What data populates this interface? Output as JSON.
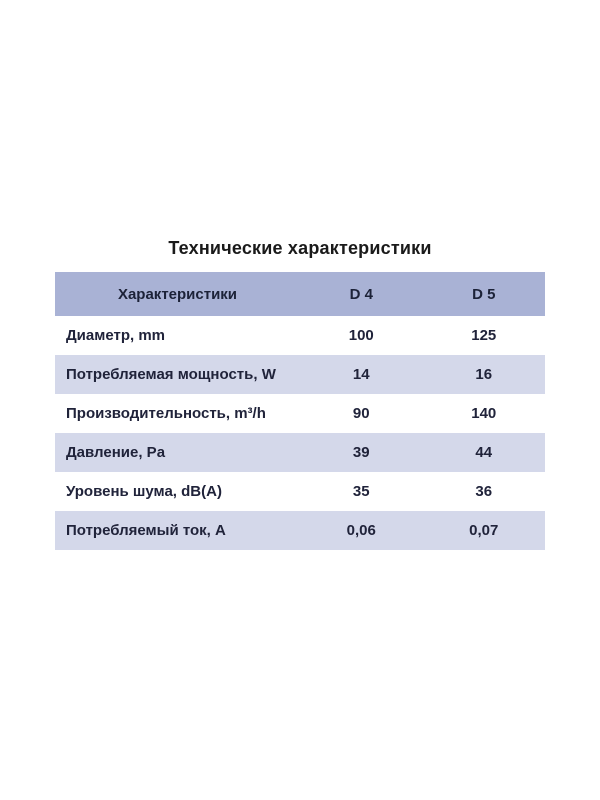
{
  "chart_data": {
    "type": "table",
    "title": "Технические характеристики",
    "columns": {
      "characteristics": "Характеристики",
      "d4": "D 4",
      "d5": "D 5"
    },
    "rows": [
      {
        "label": "Диаметр, mm",
        "d4": "100",
        "d5": "125"
      },
      {
        "label": "Потребляемая мощность, W",
        "d4": "14",
        "d5": "16"
      },
      {
        "label": "Производительность, m³/h",
        "d4": "90",
        "d5": "140"
      },
      {
        "label": "Давление, Pa",
        "d4": "39",
        "d5": "44"
      },
      {
        "label": "Уровень шума, dB(A)",
        "d4": "35",
        "d5": "36"
      },
      {
        "label": "Потребляемый ток, А",
        "d4": "0,06",
        "d5": "0,07"
      }
    ],
    "layout": {
      "legend": "none",
      "grid": "off",
      "zebra_striping": true
    },
    "colors": {
      "header_bg": "#a9b2d5",
      "stripe_row_bg": "#d4d8ea",
      "plain_row_bg": "#ffffff",
      "text": "#20233a",
      "title_text": "#1a1a1a"
    }
  }
}
